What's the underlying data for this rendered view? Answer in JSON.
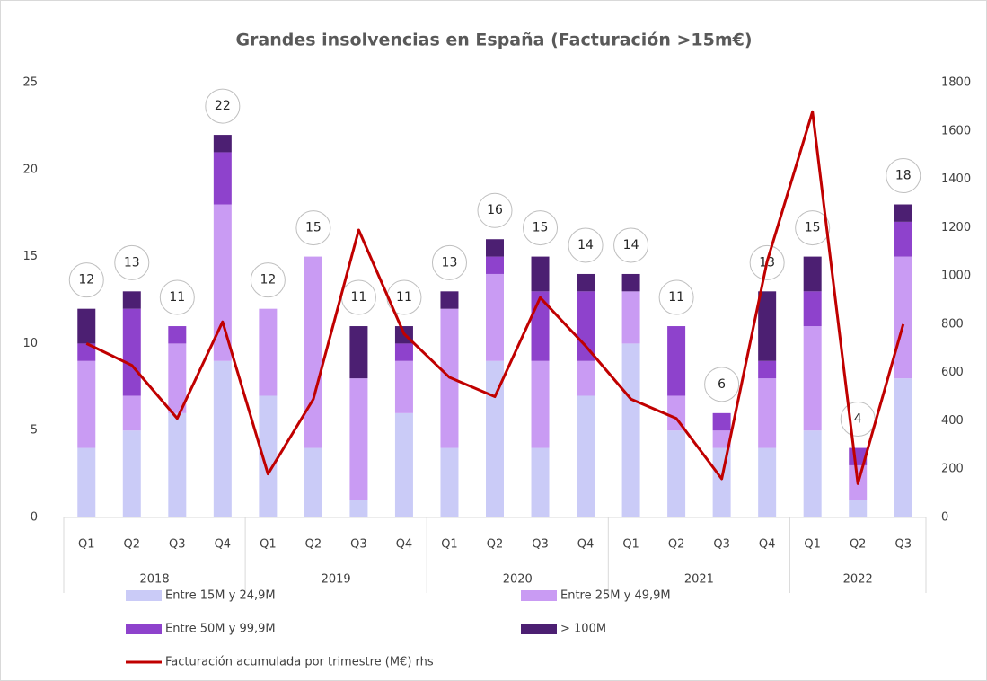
{
  "chart_data": {
    "type": "bar",
    "stacked": true,
    "title": "Grandes insolvencias en España (Facturación >15m€)",
    "groups": [
      {
        "label": "2018",
        "categories": [
          "Q1",
          "Q2",
          "Q3",
          "Q4"
        ]
      },
      {
        "label": "2019",
        "categories": [
          "Q1",
          "Q2",
          "Q3",
          "Q4"
        ]
      },
      {
        "label": "2020",
        "categories": [
          "Q1",
          "Q2",
          "Q3",
          "Q4"
        ]
      },
      {
        "label": "2021",
        "categories": [
          "Q1",
          "Q2",
          "Q3",
          "Q4"
        ]
      },
      {
        "label": "2022",
        "categories": [
          "Q1",
          "Q2",
          "Q3"
        ]
      }
    ],
    "series": [
      {
        "name": "Entre 15M y 24,9M",
        "color": "#cacbf7",
        "values": [
          4,
          5,
          6,
          9,
          7,
          4,
          1,
          6,
          4,
          9,
          4,
          7,
          10,
          5,
          4,
          4,
          5,
          1,
          8
        ]
      },
      {
        "name": "Entre 25M y 49,9M",
        "color": "#c99bf3",
        "values": [
          5,
          2,
          4,
          9,
          5,
          11,
          7,
          3,
          8,
          5,
          5,
          2,
          3,
          2,
          1,
          4,
          6,
          2,
          7
        ]
      },
      {
        "name": "Entre 50M y 99,9M",
        "color": "#8e42cc",
        "values": [
          1,
          5,
          1,
          3,
          0,
          0,
          0,
          1,
          0,
          1,
          4,
          4,
          0,
          4,
          1,
          1,
          2,
          1,
          2
        ]
      },
      {
        "name": "> 100M",
        "color": "#4c1f72",
        "values": [
          2,
          1,
          0,
          1,
          0,
          0,
          3,
          1,
          1,
          1,
          2,
          1,
          1,
          0,
          0,
          4,
          2,
          0,
          1
        ]
      },
      {
        "name": "Facturación acumulada por trimestre (M€) rhs",
        "color": "#c00000",
        "type": "line",
        "axis": "y2",
        "values": [
          720,
          630,
          410,
          810,
          180,
          490,
          1190,
          760,
          580,
          500,
          910,
          710,
          490,
          410,
          160,
          1060,
          1680,
          140,
          800
        ]
      }
    ],
    "totals": [
      12,
      13,
      11,
      22,
      12,
      15,
      11,
      11,
      13,
      16,
      15,
      14,
      14,
      11,
      6,
      13,
      15,
      4,
      18
    ],
    "ylim": [
      0,
      25
    ],
    "yticks": [
      0,
      5,
      10,
      15,
      20,
      25
    ],
    "y2lim": [
      0,
      1800
    ],
    "y2ticks": [
      0,
      200,
      400,
      600,
      800,
      1000,
      1200,
      1400,
      1600,
      1800
    ],
    "grid": false,
    "legend": "bottom"
  }
}
